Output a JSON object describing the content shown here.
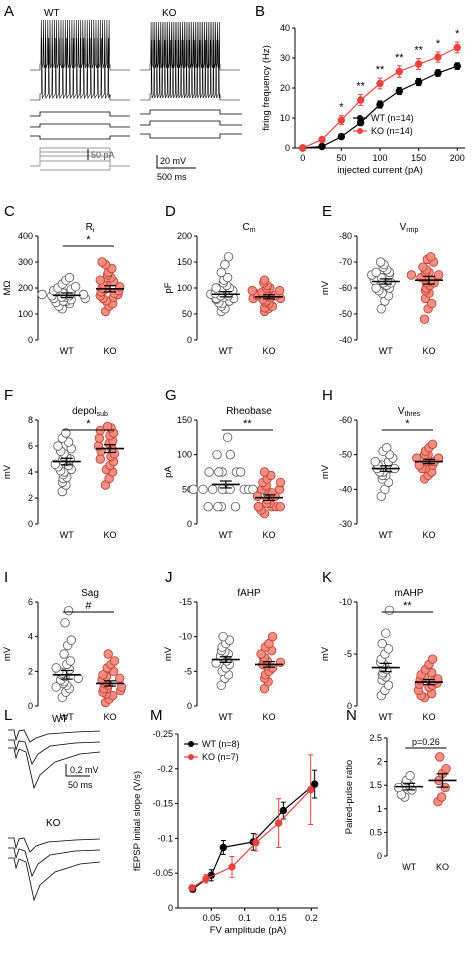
{
  "panels": {
    "A": {
      "letter": "A",
      "wt_label": "WT",
      "ko_label": "KO",
      "scale_current": "50 pA",
      "scale_voltage": "20 mV",
      "scale_time": "500 ms"
    },
    "L": {
      "letter": "L",
      "wt_label": "WT",
      "ko_label": "KO",
      "scale_voltage": "0.2 mV",
      "scale_time": "50 ms"
    }
  },
  "colors": {
    "wt": "#000000",
    "ko": "#e8433f",
    "ko_fill": "#f08a7e",
    "wt_fill": "#ffffff"
  },
  "chart_data": [
    {
      "id": "B",
      "letter": "B",
      "type": "line",
      "xlabel": "injected current (pA)",
      "ylabel": "firing frequency (Hz)",
      "xlim": [
        -10,
        210
      ],
      "ylim": [
        0,
        40
      ],
      "xticks": [
        0,
        50,
        100,
        150,
        200
      ],
      "yticks": [
        0,
        10,
        20,
        30,
        40
      ],
      "series": [
        {
          "name": "WT (n=14)",
          "x": [
            0,
            25,
            50,
            75,
            100,
            125,
            150,
            175,
            200
          ],
          "y": [
            0,
            0.5,
            3.8,
            8.5,
            14.5,
            19,
            22,
            25,
            27.3
          ],
          "err": [
            0,
            0.3,
            0.8,
            1.0,
            1.2,
            1.2,
            1.2,
            1.1,
            1.1
          ]
        },
        {
          "name": "KO (n=14)",
          "x": [
            0,
            25,
            50,
            75,
            100,
            125,
            150,
            175,
            200
          ],
          "y": [
            0,
            2.8,
            9.3,
            16,
            21.5,
            25.5,
            28,
            30.3,
            33.5
          ],
          "err": [
            0,
            0.8,
            1.5,
            1.8,
            1.8,
            1.9,
            1.8,
            1.7,
            1.8
          ]
        }
      ],
      "annotations": [
        {
          "x": 50,
          "text": "*"
        },
        {
          "x": 75,
          "text": "**"
        },
        {
          "x": 100,
          "text": "**"
        },
        {
          "x": 125,
          "text": "**"
        },
        {
          "x": 150,
          "text": "**"
        },
        {
          "x": 175,
          "text": "*"
        },
        {
          "x": 200,
          "text": "*"
        }
      ]
    },
    {
      "id": "C",
      "letter": "C",
      "type": "scatter",
      "title": "Ri",
      "ylabel": "MΩ",
      "categories": [
        "WT",
        "KO"
      ],
      "ylim": [
        0,
        400
      ],
      "yticks": [
        0,
        100,
        200,
        300,
        400
      ],
      "reversed": false,
      "sig": "*",
      "groups": [
        {
          "name": "WT",
          "mean": 172,
          "sem": 9,
          "values": [
            120,
            130,
            140,
            145,
            150,
            150,
            155,
            160,
            160,
            165,
            165,
            170,
            170,
            175,
            175,
            180,
            180,
            185,
            190,
            195,
            200,
            205,
            215,
            230,
            240
          ]
        },
        {
          "name": "KO",
          "mean": 197,
          "sem": 12,
          "values": [
            110,
            130,
            140,
            150,
            160,
            165,
            170,
            175,
            180,
            185,
            190,
            195,
            200,
            205,
            210,
            215,
            225,
            230,
            240,
            250,
            260,
            275,
            290,
            300
          ]
        }
      ]
    },
    {
      "id": "D",
      "letter": "D",
      "type": "scatter",
      "title": "Cm",
      "ylabel": "pF",
      "categories": [
        "WT",
        "KO"
      ],
      "ylim": [
        0,
        200
      ],
      "yticks": [
        0,
        50,
        100,
        150,
        200
      ],
      "reversed": false,
      "sig": "",
      "groups": [
        {
          "name": "WT",
          "mean": 88,
          "sem": 5,
          "values": [
            55,
            60,
            65,
            70,
            72,
            75,
            78,
            80,
            80,
            82,
            85,
            85,
            88,
            90,
            90,
            95,
            100,
            100,
            105,
            110,
            115,
            120,
            130,
            145,
            160
          ]
        },
        {
          "name": "KO",
          "mean": 83,
          "sem": 4,
          "values": [
            55,
            60,
            62,
            65,
            70,
            72,
            75,
            78,
            80,
            80,
            82,
            85,
            85,
            88,
            90,
            92,
            95,
            95,
            100,
            100,
            105,
            110,
            115
          ]
        }
      ]
    },
    {
      "id": "E",
      "letter": "E",
      "type": "scatter",
      "title": "Vrmp",
      "ylabel": "mV",
      "categories": [
        "WT",
        "KO"
      ],
      "ylim": [
        -40,
        -80
      ],
      "yticks": [
        -40,
        -50,
        -60,
        -70,
        -80
      ],
      "reversed": true,
      "sig": "",
      "groups": [
        {
          "name": "WT",
          "mean": -62.5,
          "sem": 1,
          "values": [
            -52,
            -55,
            -57,
            -58,
            -59,
            -60,
            -60,
            -61,
            -62,
            -62,
            -63,
            -63,
            -64,
            -64,
            -65,
            -65,
            -66,
            -66,
            -67,
            -68,
            -69,
            -70
          ]
        },
        {
          "name": "KO",
          "mean": -63,
          "sem": 1.5,
          "values": [
            -48,
            -52,
            -54,
            -56,
            -58,
            -59,
            -60,
            -61,
            -62,
            -62,
            -63,
            -64,
            -64,
            -65,
            -65,
            -66,
            -66,
            -67,
            -68,
            -70,
            -71,
            -72
          ]
        }
      ]
    },
    {
      "id": "F",
      "letter": "F",
      "type": "scatter",
      "title": "depolsub",
      "ylabel": "mV",
      "categories": [
        "WT",
        "KO"
      ],
      "ylim": [
        0,
        8
      ],
      "yticks": [
        0,
        2,
        4,
        6,
        8
      ],
      "reversed": false,
      "sig": "*",
      "groups": [
        {
          "name": "WT",
          "mean": 4.8,
          "sem": 0.25,
          "values": [
            2.5,
            3.0,
            3.2,
            3.5,
            3.6,
            3.8,
            4.0,
            4.1,
            4.2,
            4.4,
            4.5,
            4.6,
            4.8,
            4.9,
            5.0,
            5.1,
            5.2,
            5.4,
            5.6,
            5.8,
            6.0,
            6.3,
            6.6,
            7.0
          ]
        },
        {
          "name": "KO",
          "mean": 5.8,
          "sem": 0.3,
          "values": [
            3.0,
            3.5,
            4.0,
            4.2,
            4.5,
            4.8,
            5.0,
            5.2,
            5.4,
            5.6,
            5.8,
            6.0,
            6.2,
            6.4,
            6.6,
            6.8,
            7.0,
            7.2,
            7.4,
            7.5
          ]
        }
      ]
    },
    {
      "id": "G",
      "letter": "G",
      "type": "scatter",
      "title": "Rheobase",
      "ylabel": "pA",
      "categories": [
        "WT",
        "KO"
      ],
      "ylim": [
        0,
        150
      ],
      "yticks": [
        0,
        50,
        100,
        150
      ],
      "reversed": false,
      "sig": "**",
      "groups": [
        {
          "name": "WT",
          "mean": 57,
          "sem": 5,
          "values": [
            25,
            25,
            25,
            25,
            50,
            50,
            50,
            50,
            50,
            50,
            50,
            50,
            50,
            50,
            75,
            75,
            75,
            75,
            75,
            100,
            100,
            125
          ]
        },
        {
          "name": "KO",
          "mean": 38,
          "sem": 4,
          "values": [
            15,
            20,
            25,
            25,
            25,
            25,
            25,
            30,
            30,
            35,
            40,
            40,
            40,
            45,
            50,
            50,
            50,
            55,
            60,
            60,
            65,
            70,
            75
          ]
        }
      ]
    },
    {
      "id": "H",
      "letter": "H",
      "type": "scatter",
      "title": "Vthres",
      "ylabel": "mV",
      "categories": [
        "WT",
        "KO"
      ],
      "ylim": [
        -30,
        -60
      ],
      "yticks": [
        -30,
        -40,
        -50,
        -60
      ],
      "reversed": true,
      "sig": "*",
      "groups": [
        {
          "name": "WT",
          "mean": -46,
          "sem": 0.8,
          "values": [
            -38,
            -40,
            -42,
            -43,
            -44,
            -44,
            -45,
            -45,
            -46,
            -46,
            -46,
            -47,
            -47,
            -48,
            -48,
            -49,
            -50,
            -51,
            -52
          ]
        },
        {
          "name": "KO",
          "mean": -48,
          "sem": 0.6,
          "values": [
            -43,
            -44,
            -45,
            -46,
            -46,
            -47,
            -47,
            -48,
            -48,
            -48,
            -49,
            -49,
            -50,
            -50,
            -51,
            -52,
            -53
          ]
        }
      ]
    },
    {
      "id": "I",
      "letter": "I",
      "type": "scatter",
      "title": "Sag",
      "ylabel": "mV",
      "categories": [
        "WT",
        "KO"
      ],
      "ylim": [
        0,
        6
      ],
      "yticks": [
        0,
        2,
        4,
        6
      ],
      "reversed": false,
      "sig": "#",
      "groups": [
        {
          "name": "WT",
          "mean": 1.8,
          "sem": 0.25,
          "values": [
            0.5,
            0.8,
            1.0,
            1.1,
            1.2,
            1.3,
            1.4,
            1.5,
            1.6,
            1.7,
            1.8,
            1.9,
            2.0,
            2.1,
            2.2,
            2.4,
            2.6,
            3.0,
            3.5,
            3.8,
            4.8,
            5.5
          ]
        },
        {
          "name": "KO",
          "mean": 1.3,
          "sem": 0.15,
          "values": [
            0.2,
            0.4,
            0.6,
            0.7,
            0.8,
            0.9,
            1.0,
            1.0,
            1.1,
            1.2,
            1.3,
            1.4,
            1.5,
            1.6,
            1.7,
            1.8,
            2.0,
            2.2,
            2.4,
            2.6,
            3.0
          ]
        }
      ]
    },
    {
      "id": "J",
      "letter": "J",
      "type": "scatter",
      "title": "fAHP",
      "ylabel": "mV",
      "categories": [
        "WT",
        "KO"
      ],
      "ylim": [
        0,
        -15
      ],
      "yticks": [
        0,
        -5,
        -10,
        -15
      ],
      "reversed": false,
      "sig": "",
      "groups": [
        {
          "name": "WT",
          "mean": -6.7,
          "sem": 0.4,
          "values": [
            -3.0,
            -4.0,
            -4.5,
            -5.0,
            -5.5,
            -6.0,
            -6.2,
            -6.5,
            -6.8,
            -7.0,
            -7.2,
            -7.5,
            -7.8,
            -8.0,
            -8.5,
            -9.0,
            -9.5,
            -10.0
          ]
        },
        {
          "name": "KO",
          "mean": -6.0,
          "sem": 0.4,
          "values": [
            -2.5,
            -3.5,
            -4.0,
            -4.5,
            -5.0,
            -5.5,
            -5.8,
            -6.0,
            -6.3,
            -6.5,
            -6.8,
            -7.0,
            -7.5,
            -8.0,
            -8.5,
            -9.0,
            -10.0
          ]
        }
      ]
    },
    {
      "id": "K",
      "letter": "K",
      "type": "scatter",
      "title": "mAHP",
      "ylabel": "mV",
      "categories": [
        "WT",
        "KO"
      ],
      "ylim": [
        0,
        -10
      ],
      "yticks": [
        0,
        -5,
        -10
      ],
      "reversed": false,
      "sig": "**",
      "groups": [
        {
          "name": "WT",
          "mean": -3.7,
          "sem": 0.4,
          "values": [
            -1.0,
            -1.5,
            -2.0,
            -2.5,
            -2.8,
            -3.0,
            -3.2,
            -3.5,
            -3.8,
            -4.0,
            -4.2,
            -4.5,
            -5.0,
            -5.5,
            -6.0,
            -7.0,
            -9.2
          ]
        },
        {
          "name": "KO",
          "mean": -2.3,
          "sem": 0.25,
          "values": [
            -0.8,
            -1.0,
            -1.2,
            -1.5,
            -1.8,
            -2.0,
            -2.1,
            -2.2,
            -2.4,
            -2.5,
            -2.6,
            -2.8,
            -3.0,
            -3.2,
            -3.5,
            -4.0,
            -4.5
          ]
        }
      ]
    },
    {
      "id": "M",
      "letter": "M",
      "type": "line",
      "xlabel": "FV amplitude (pA)",
      "ylabel": "fEPSP initial slope (V/s)",
      "xlim": [
        0,
        0.21
      ],
      "ylim": [
        0,
        -0.25
      ],
      "xticks": [
        0.05,
        0.1,
        0.15,
        0.2
      ],
      "yticks": [
        0,
        -0.05,
        -0.1,
        -0.15,
        -0.2,
        -0.25
      ],
      "xtick_labels": [
        "0.05",
        "0.1",
        "0.15",
        "0.2"
      ],
      "ytick_labels": [
        "0",
        "-0.05",
        "-0.1",
        "-0.15",
        "-0.2",
        "-0.25"
      ],
      "series": [
        {
          "name": "WT (n=8)",
          "x": [
            0.022,
            0.05,
            0.068,
            0.113,
            0.158,
            0.205
          ],
          "y": [
            -0.027,
            -0.047,
            -0.087,
            -0.095,
            -0.14,
            -0.178
          ],
          "err": [
            0.004,
            0.008,
            0.01,
            0.012,
            0.012,
            0.02
          ]
        },
        {
          "name": "KO (n=7)",
          "x": [
            0.021,
            0.042,
            0.081,
            0.117,
            0.151,
            0.199
          ],
          "y": [
            -0.029,
            -0.042,
            -0.059,
            -0.094,
            -0.122,
            -0.17
          ],
          "err": [
            0.004,
            0.006,
            0.015,
            0.012,
            0.035,
            0.05
          ]
        }
      ]
    },
    {
      "id": "N",
      "letter": "N",
      "type": "scatter",
      "title": "",
      "ylabel": "Paired-pulse ratio",
      "categories": [
        "WT",
        "KO"
      ],
      "ylim": [
        0,
        2.5
      ],
      "yticks": [
        0,
        0.5,
        1,
        1.5,
        2,
        2.5
      ],
      "reversed": false,
      "sig": "p=0.26",
      "groups": [
        {
          "name": "WT",
          "mean": 1.47,
          "sem": 0.07,
          "values": [
            1.25,
            1.3,
            1.4,
            1.45,
            1.5,
            1.55,
            1.6,
            1.7
          ]
        },
        {
          "name": "KO",
          "mean": 1.6,
          "sem": 0.14,
          "values": [
            1.15,
            1.25,
            1.45,
            1.6,
            1.75,
            1.85,
            2.1
          ]
        }
      ]
    }
  ]
}
